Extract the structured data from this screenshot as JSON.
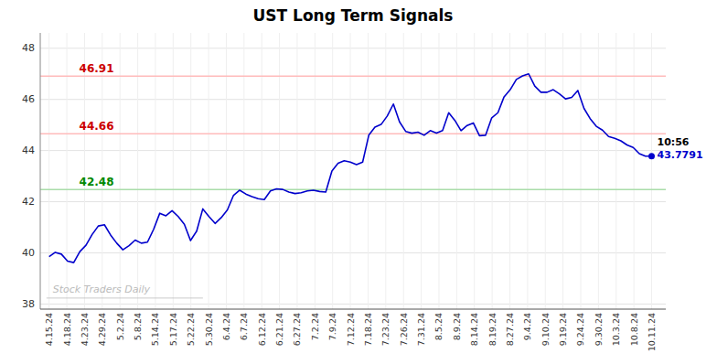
{
  "chart_data": {
    "type": "line",
    "title": "UST Long Term Signals",
    "color": "#0000cc",
    "grid": true,
    "x": [
      0,
      0.3469,
      0.6939,
      1.0408,
      1.3878,
      1.7347,
      2.0816,
      2.4286,
      2.7755,
      3.1224,
      3.4694,
      3.8163,
      4.1633,
      4.5102,
      4.8571,
      5.2041,
      5.551,
      5.898,
      6.2449,
      6.5918,
      6.9388,
      7.2857,
      7.6327,
      7.9796,
      8.3265,
      8.6735,
      9.0204,
      9.3673,
      9.7143,
      10.0612,
      10.4082,
      10.7551,
      11.102,
      11.449,
      11.7959,
      12.1429,
      12.4898,
      12.8367,
      13.1837,
      13.5306,
      13.8776,
      14.2245,
      14.5714,
      14.9184,
      15.2653,
      15.6122,
      15.9592,
      16.3061,
      16.6531,
      17,
      17.3469,
      17.6939,
      18.0408,
      18.3878,
      18.7347,
      19.0816,
      19.4286,
      19.7755,
      20.1224,
      20.4694,
      20.8163,
      21.1633,
      21.5102,
      21.8571,
      22.2041,
      22.551,
      22.898,
      23.2449,
      23.5918,
      23.9388,
      24.2857,
      24.6327,
      24.9796,
      25.3265,
      25.6735,
      26.0204,
      26.3673,
      26.7143,
      27.0612,
      27.4082,
      27.7551,
      28.102,
      28.449,
      28.7959,
      29.1429,
      29.4898,
      29.8367,
      30.1837,
      30.5306,
      30.8776,
      31.2245,
      31.5714,
      31.9184,
      32.2653,
      32.6122,
      32.9592,
      33.3061,
      33.6531,
      34
    ],
    "values": [
      39.85,
      40.02,
      39.95,
      39.68,
      39.62,
      40.05,
      40.3,
      40.72,
      41.05,
      41.1,
      40.7,
      40.38,
      40.12,
      40.28,
      40.5,
      40.38,
      40.42,
      40.92,
      41.55,
      41.45,
      41.65,
      41.42,
      41.12,
      40.48,
      40.85,
      41.72,
      41.42,
      41.15,
      41.38,
      41.68,
      42.25,
      42.45,
      42.3,
      42.2,
      42.12,
      42.08,
      42.42,
      42.5,
      42.48,
      42.38,
      42.32,
      42.35,
      42.42,
      42.45,
      42.4,
      42.38,
      43.2,
      43.5,
      43.6,
      43.55,
      43.45,
      43.55,
      44.6,
      44.92,
      45.02,
      45.35,
      45.82,
      45.12,
      44.75,
      44.68,
      44.72,
      44.6,
      44.78,
      44.68,
      44.78,
      45.48,
      45.18,
      44.78,
      44.98,
      45.08,
      44.58,
      44.6,
      45.28,
      45.48,
      46.1,
      46.38,
      46.78,
      46.92,
      47.0,
      46.52,
      46.28,
      46.28,
      46.38,
      46.22,
      46.02,
      46.08,
      46.35,
      45.65,
      45.25,
      44.95,
      44.8,
      44.55,
      44.48,
      44.38,
      44.22,
      44.12,
      43.88,
      43.78,
      43.7791
    ],
    "xlim": [
      -0.5,
      34.8
    ],
    "xticks": [
      {
        "value": 0,
        "label": "4.15.24"
      },
      {
        "value": 1,
        "label": "4.18.24"
      },
      {
        "value": 2,
        "label": "4.23.24"
      },
      {
        "value": 3,
        "label": "4.29.24"
      },
      {
        "value": 4,
        "label": "5.2.24"
      },
      {
        "value": 5,
        "label": "5.8.24"
      },
      {
        "value": 6,
        "label": "5.14.24"
      },
      {
        "value": 7,
        "label": "5.17.24"
      },
      {
        "value": 8,
        "label": "5.22.24"
      },
      {
        "value": 9,
        "label": "5.30.24"
      },
      {
        "value": 10,
        "label": "6.4.24"
      },
      {
        "value": 11,
        "label": "6.7.24"
      },
      {
        "value": 12,
        "label": "6.12.24"
      },
      {
        "value": 13,
        "label": "6.21.24"
      },
      {
        "value": 14,
        "label": "6.27.24"
      },
      {
        "value": 15,
        "label": "7.2.24"
      },
      {
        "value": 16,
        "label": "7.9.24"
      },
      {
        "value": 17,
        "label": "7.12.24"
      },
      {
        "value": 18,
        "label": "7.18.24"
      },
      {
        "value": 19,
        "label": "7.23.24"
      },
      {
        "value": 20,
        "label": "7.26.24"
      },
      {
        "value": 21,
        "label": "7.31.24"
      },
      {
        "value": 22,
        "label": "8.5.24"
      },
      {
        "value": 23,
        "label": "8.9.24"
      },
      {
        "value": 24,
        "label": "8.14.24"
      },
      {
        "value": 25,
        "label": "8.19.24"
      },
      {
        "value": 26,
        "label": "8.27.24"
      },
      {
        "value": 27,
        "label": "9.4.24"
      },
      {
        "value": 28,
        "label": "9.10.24"
      },
      {
        "value": 29,
        "label": "9.19.24"
      },
      {
        "value": 30,
        "label": "9.24.24"
      },
      {
        "value": 31,
        "label": "9.30.24"
      },
      {
        "value": 32,
        "label": "10.3.24"
      },
      {
        "value": 33,
        "label": "10.8.24"
      },
      {
        "value": 34,
        "label": "10.11.24"
      }
    ],
    "ylim": [
      37.8,
      48.6
    ],
    "yticks": [
      38,
      40,
      42,
      44,
      46,
      48
    ],
    "reference_lines": [
      {
        "value": 46.91,
        "label": "46.91",
        "color": "#ffbbbb",
        "label_color": "#cc0000"
      },
      {
        "value": 44.66,
        "label": "44.66",
        "color": "#ffbbbb",
        "label_color": "#cc0000"
      },
      {
        "value": 42.48,
        "label": "42.48",
        "color": "#aaddaa",
        "label_color": "#008800"
      }
    ],
    "last_point": {
      "x": 34,
      "y": 43.7791,
      "color": "#0000cc",
      "time_label": "10:56",
      "value_label": "43.7791"
    },
    "watermark": "Stock Traders Daily"
  }
}
